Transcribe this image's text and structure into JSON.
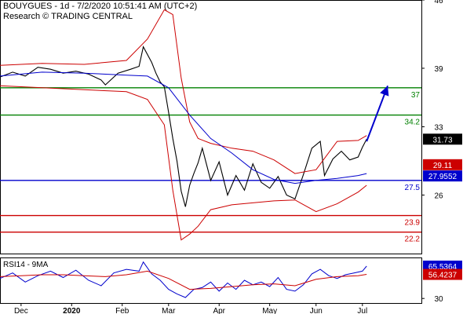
{
  "header": {
    "line1": "BOUYGUES - 1d - 7/2/2020 10:51:41 AM (UTC+2)",
    "line2": "Research © TRADING CENTRAL"
  },
  "chart_data": [
    {
      "type": "candlestick",
      "title": "BOUYGUES - 1d - 7/2/2020 10:51:41 AM (UTC+2)",
      "ylim": [
        20,
        46
      ],
      "y_ticks": [
        26,
        33,
        39,
        46
      ],
      "x_ticks": [
        "Dec",
        "2020",
        "Feb",
        "Mar",
        "Apr",
        "May",
        "Jun",
        "Jul"
      ],
      "levels": [
        {
          "value": 37,
          "label": "37",
          "color": "#008000"
        },
        {
          "value": 34.2,
          "label": "34.2",
          "color": "#008000"
        },
        {
          "value": 27.5,
          "label": "27.5",
          "color": "#0000cc"
        },
        {
          "value": 23.9,
          "label": "23.9",
          "color": "#cc0000"
        },
        {
          "value": 22.2,
          "label": "22.2",
          "color": "#cc0000"
        }
      ],
      "value_boxes": [
        {
          "label": "31.73",
          "value": 31.73,
          "color": "#000000"
        },
        {
          "label": "29.11",
          "value": 29.11,
          "color": "#cc0000"
        },
        {
          "label": "27.9552",
          "value": 27.9552,
          "color": "#0000cc"
        }
      ],
      "projection": {
        "from": [
          0.87,
          31.5
        ],
        "to": [
          0.92,
          37.2
        ],
        "color": "#0000cc"
      },
      "series": [
        {
          "role": "price",
          "x": [
            0.0,
            0.03,
            0.06,
            0.09,
            0.12,
            0.15,
            0.18,
            0.21,
            0.24,
            0.25,
            0.28,
            0.31,
            0.33,
            0.34,
            0.36,
            0.37,
            0.38,
            0.39,
            0.4,
            0.41,
            0.42,
            0.43,
            0.44,
            0.45,
            0.46,
            0.47,
            0.48,
            0.5,
            0.52,
            0.54,
            0.56,
            0.58,
            0.6,
            0.62,
            0.64,
            0.66,
            0.68,
            0.7,
            0.72,
            0.74,
            0.76,
            0.77,
            0.79,
            0.81,
            0.83,
            0.85,
            0.86,
            0.87
          ],
          "values": [
            38.1,
            38.6,
            38.2,
            39.1,
            38.9,
            38.5,
            38.7,
            38.4,
            37.8,
            37.3,
            38.5,
            38.9,
            39.2,
            41.2,
            39.6,
            38.5,
            37.6,
            37.1,
            34.5,
            31.8,
            29.5,
            26.4,
            24.8,
            27.0,
            28.2,
            29.3,
            30.8,
            27.5,
            29.4,
            26.0,
            28.0,
            26.5,
            29.2,
            27.3,
            26.7,
            27.9,
            26.0,
            25.6,
            28.1,
            30.8,
            31.5,
            28.0,
            29.7,
            30.5,
            29.6,
            29.9,
            30.9,
            31.73
          ]
        },
        {
          "role": "bollinger_upper",
          "x": [
            0.0,
            0.1,
            0.2,
            0.3,
            0.35,
            0.39,
            0.41,
            0.43,
            0.45,
            0.47,
            0.5,
            0.55,
            0.6,
            0.65,
            0.7,
            0.75,
            0.8,
            0.85,
            0.87
          ],
          "values": [
            39.3,
            39.5,
            39.4,
            39.8,
            42.0,
            45.0,
            44.5,
            38.0,
            33.5,
            31.8,
            31.3,
            30.8,
            30.5,
            29.6,
            28.2,
            28.6,
            31.5,
            31.6,
            32.1
          ]
        },
        {
          "role": "bollinger_lower",
          "x": [
            0.0,
            0.1,
            0.2,
            0.3,
            0.35,
            0.39,
            0.41,
            0.43,
            0.45,
            0.47,
            0.5,
            0.55,
            0.6,
            0.65,
            0.7,
            0.75,
            0.8,
            0.85,
            0.87
          ],
          "values": [
            37.2,
            37.0,
            36.8,
            36.6,
            35.8,
            33.2,
            26.5,
            21.4,
            22.0,
            22.8,
            24.5,
            25.0,
            25.2,
            25.4,
            25.5,
            24.3,
            25.1,
            26.3,
            27.0
          ]
        },
        {
          "role": "moving_average",
          "x": [
            0.0,
            0.1,
            0.2,
            0.3,
            0.35,
            0.4,
            0.45,
            0.5,
            0.55,
            0.6,
            0.65,
            0.7,
            0.75,
            0.8,
            0.85,
            0.87
          ],
          "values": [
            38.2,
            38.6,
            38.5,
            38.3,
            38.2,
            37.0,
            34.2,
            31.8,
            30.3,
            28.6,
            27.6,
            27.2,
            27.5,
            27.7,
            28.0,
            28.2
          ]
        }
      ]
    },
    {
      "type": "line",
      "title": "RSI14 - 9MA",
      "ylim": [
        25,
        75
      ],
      "y_ticks": [
        30
      ],
      "value_boxes": [
        {
          "label": "65.5364",
          "value": 65.5364,
          "color": "#0000cc"
        },
        {
          "label": "56.4237",
          "value": 56.4237,
          "color": "#cc0000"
        }
      ],
      "series": [
        {
          "role": "rsi",
          "x": [
            0.0,
            0.03,
            0.06,
            0.09,
            0.12,
            0.15,
            0.18,
            0.21,
            0.24,
            0.27,
            0.3,
            0.33,
            0.34,
            0.36,
            0.38,
            0.4,
            0.42,
            0.44,
            0.46,
            0.48,
            0.5,
            0.52,
            0.54,
            0.56,
            0.58,
            0.6,
            0.62,
            0.64,
            0.66,
            0.68,
            0.7,
            0.72,
            0.74,
            0.76,
            0.78,
            0.8,
            0.82,
            0.84,
            0.86,
            0.87
          ],
          "values": [
            52,
            58,
            48,
            55,
            60,
            53,
            61,
            50,
            44,
            58,
            62,
            60,
            70,
            57,
            50,
            40,
            35,
            31,
            40,
            42,
            48,
            38,
            47,
            40,
            50,
            45,
            48,
            43,
            53,
            40,
            38,
            45,
            57,
            62,
            55,
            52,
            56,
            58,
            60,
            65.5364
          ]
        },
        {
          "role": "rsi_ma",
          "x": [
            0.0,
            0.05,
            0.1,
            0.15,
            0.2,
            0.25,
            0.3,
            0.35,
            0.4,
            0.45,
            0.5,
            0.55,
            0.6,
            0.65,
            0.7,
            0.75,
            0.8,
            0.85,
            0.87
          ],
          "values": [
            54,
            55,
            56,
            56,
            55,
            54,
            56,
            60,
            52,
            40,
            41,
            43,
            45,
            46,
            44,
            51,
            54,
            55,
            56.4237
          ]
        }
      ]
    }
  ]
}
